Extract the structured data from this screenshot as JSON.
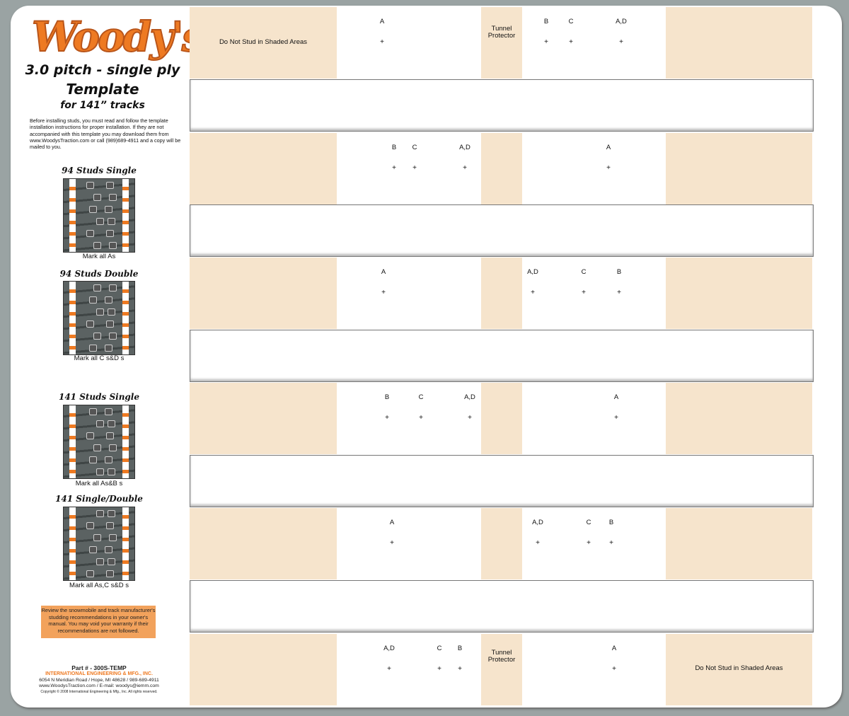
{
  "logo": "Woody's",
  "title": {
    "line1": "3.0 pitch - single ply",
    "line2": "Template",
    "line3": "for 141” tracks"
  },
  "intro": "Before installing studs, you must read and follow the template installation instructions for proper installation. If they are not accompanied with this template you may download them from www.WoodysTraction.com or call (989)689-4911 and a copy will be mailed to you.",
  "patterns": [
    {
      "heading": "94 Studs Single",
      "caption": "Mark all As"
    },
    {
      "heading": "94 Studs Double",
      "caption": "Mark all C  s&D  s"
    },
    {
      "heading": "141 Studs Single",
      "caption": "Mark all As&B  s"
    },
    {
      "heading": "141 Single/Double",
      "caption": "Mark all As,C  s&D  s"
    }
  ],
  "warning": "Review the snowmobile and track manufacturer's studding recommendations in your owner's manual. You may void your warranty if their recommendations are not followed.",
  "footer": {
    "part": "Part # - 300S-TEMP",
    "company": "INTERNATIONAL ENGINEERING & MFG., INC.",
    "address": "6054 N Meridian Road / Hope, MI 48628 / 989-689-4911",
    "web": "www.WoodysTraction.com / E-mail: woodys@iemm.com",
    "copyright": "Copyright © 2008 International Engineering & Mfg., Inc. All rights reserved."
  },
  "template": {
    "do_not_stud": "Do Not Stud in Shaded Areas",
    "tunnel_protector": "Tunnel Protector",
    "cross": "+",
    "rows": [
      {
        "labels": [
          "A",
          "B",
          "C",
          "A,D"
        ]
      },
      {
        "labels": [
          "B",
          "C",
          "A,D",
          "A"
        ]
      },
      {
        "labels": [
          "A",
          "A,D",
          "C",
          "B"
        ]
      },
      {
        "labels": [
          "B",
          "C",
          "A,D",
          "A"
        ]
      },
      {
        "labels": [
          "A",
          "A,D",
          "C",
          "B"
        ]
      },
      {
        "labels": [
          "A,D",
          "C",
          "B",
          "A"
        ]
      }
    ]
  },
  "colors": {
    "brand_orange": "#ee7a22",
    "shade": "#f6e4cc",
    "warning_bg": "#f2a25c"
  }
}
